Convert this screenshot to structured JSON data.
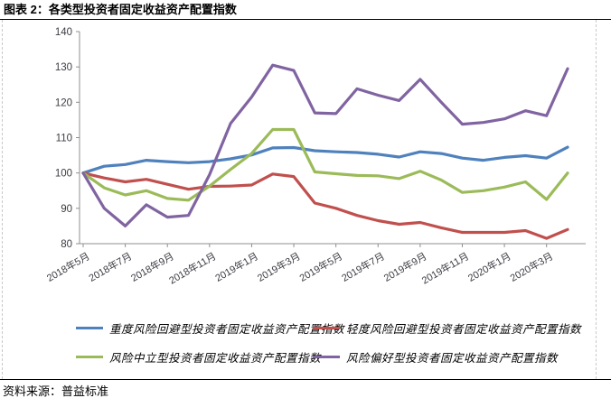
{
  "header": {
    "title": "图表 2：各类型投资者固定收益资产配置指数"
  },
  "footer": {
    "source": "资料来源：普益标准"
  },
  "chart_data": {
    "type": "line",
    "title": "各类型投资者固定收益资产配置指数",
    "categories": [
      "2018年5月",
      "2018年6月",
      "2018年7月",
      "2018年8月",
      "2018年9月",
      "2018年10月",
      "2018年11月",
      "2018年12月",
      "2019年1月",
      "2019年2月",
      "2019年3月",
      "2019年4月",
      "2019年5月",
      "2019年6月",
      "2019年7月",
      "2019年8月",
      "2019年9月",
      "2019年10月",
      "2019年11月",
      "2019年12月",
      "2020年1月",
      "2020年2月",
      "2020年3月",
      "2020年4月"
    ],
    "x_tick_interval": 2,
    "ylim": [
      80,
      140
    ],
    "ytick_step": 10,
    "grid": false,
    "legend_position": "bottom",
    "axis_color": "#8f8f8f",
    "tick_label_color": "#3c3c44",
    "series": [
      {
        "name": "重度风险回避型投资者固定收益资产配置指数",
        "color": "#4F81BD",
        "values": [
          100,
          101.9,
          102.4,
          103.6,
          103.2,
          102.9,
          103.2,
          104.0,
          105.1,
          107.1,
          107.2,
          106.3,
          106.0,
          105.8,
          105.3,
          104.5,
          106.0,
          105.5,
          104.2,
          103.6,
          104.4,
          104.9,
          104.2,
          107.3
        ]
      },
      {
        "name": "轻度风险回避型投资者固定收益资产配置指数",
        "color": "#C0504D",
        "values": [
          100,
          98.6,
          97.5,
          98.2,
          96.8,
          95.4,
          96.2,
          96.3,
          96.6,
          99.7,
          99.0,
          91.5,
          90.0,
          88.0,
          86.5,
          85.5,
          86.0,
          84.5,
          83.2,
          83.2,
          83.2,
          83.7,
          81.5,
          84.0
        ]
      },
      {
        "name": "风险中立型投资者固定收益资产配置指数",
        "color": "#9BBB59",
        "values": [
          100,
          95.8,
          93.8,
          95.0,
          92.8,
          92.3,
          96.3,
          101.0,
          105.5,
          112.3,
          112.3,
          100.3,
          99.8,
          99.3,
          99.2,
          98.4,
          100.5,
          98.0,
          94.5,
          95.0,
          96.0,
          97.5,
          92.5,
          100.0
        ]
      },
      {
        "name": "风险偏好型投资者固定收益资产配置指数",
        "color": "#8064A2",
        "values": [
          100,
          90.0,
          85.0,
          91.0,
          87.5,
          88.0,
          99.5,
          114.0,
          121.5,
          130.5,
          129.0,
          117.0,
          116.8,
          123.8,
          122.0,
          120.5,
          126.5,
          120.0,
          113.8,
          114.3,
          115.3,
          117.6,
          116.2,
          129.5
        ]
      }
    ]
  }
}
